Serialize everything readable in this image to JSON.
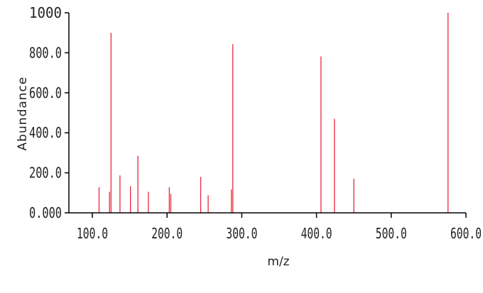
{
  "chart_data": {
    "type": "bar",
    "subtype": "mass-spectrum-sticks",
    "xlabel": "m/z",
    "ylabel": "Abundance",
    "xlim": [
      100,
      600
    ],
    "ylim": [
      0,
      1000
    ],
    "x_ticks": [
      "100.0",
      "200.0",
      "300.0",
      "400.0",
      "500.0",
      "600.0"
    ],
    "y_ticks": [
      "0.000",
      "200.0",
      "400.0",
      "600.0",
      "800.0",
      "1000"
    ],
    "grid": false,
    "bar_color": "#e8283c",
    "axis_color": "#000000",
    "peaks": [
      {
        "x": 109,
        "y": 128
      },
      {
        "x": 123,
        "y": 105
      },
      {
        "x": 125,
        "y": 900
      },
      {
        "x": 137,
        "y": 187
      },
      {
        "x": 151,
        "y": 133
      },
      {
        "x": 161,
        "y": 285
      },
      {
        "x": 175,
        "y": 105
      },
      {
        "x": 203,
        "y": 128
      },
      {
        "x": 205,
        "y": 95
      },
      {
        "x": 245,
        "y": 180
      },
      {
        "x": 255,
        "y": 88
      },
      {
        "x": 286,
        "y": 117
      },
      {
        "x": 288,
        "y": 843
      },
      {
        "x": 406,
        "y": 782
      },
      {
        "x": 424,
        "y": 470
      },
      {
        "x": 450,
        "y": 170
      },
      {
        "x": 576,
        "y": 1000
      }
    ]
  }
}
